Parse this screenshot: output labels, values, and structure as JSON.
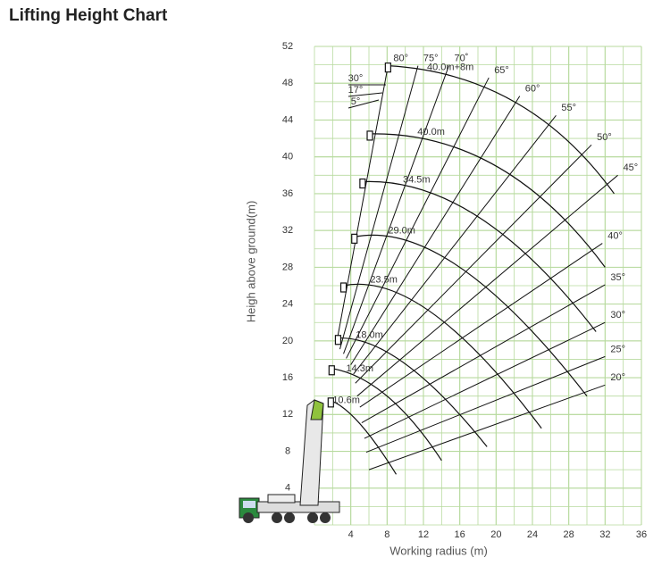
{
  "chart_data": {
    "type": "crane-range",
    "title": "Lifting Height Chart",
    "x_label": "Working radius (m)",
    "y_label": "Heigh above ground(m)",
    "xlim": [
      0,
      36
    ],
    "ylim": [
      0,
      52
    ],
    "xticks": [
      4,
      8,
      12,
      16,
      20,
      24,
      28,
      32,
      36
    ],
    "yticks": [
      4,
      8,
      12,
      16,
      20,
      24,
      28,
      32,
      36,
      40,
      44,
      48,
      52
    ],
    "grid": true,
    "minor_grid": true,
    "grid_color": "#b7da9e",
    "line_color": "#111",
    "booms": [
      {
        "name": "10.6m",
        "x": [
          1.8,
          5,
          9
        ],
        "y": [
          13.5,
          11,
          5.5
        ]
      },
      {
        "name": "14.3m",
        "x": [
          1.9,
          8,
          14
        ],
        "y": [
          17,
          14,
          7
        ]
      },
      {
        "name": "18.0m",
        "x": [
          2.6,
          10,
          19
        ],
        "y": [
          20.3,
          17.5,
          8.5
        ]
      },
      {
        "name": "23.5m",
        "x": [
          3.2,
          13,
          25
        ],
        "y": [
          26,
          23,
          10.5
        ]
      },
      {
        "name": "29.0m",
        "x": [
          4.4,
          16,
          30
        ],
        "y": [
          31.3,
          28,
          14
        ]
      },
      {
        "name": "34.5m",
        "x": [
          5.3,
          18,
          31
        ],
        "y": [
          37.3,
          33.5,
          21
        ]
      },
      {
        "name": "40.0m",
        "x": [
          6.1,
          20,
          32
        ],
        "y": [
          42.5,
          39,
          28
        ]
      },
      {
        "name": "40.0m+8m",
        "x": [
          8.1,
          22,
          33
        ],
        "y": [
          49.9,
          46,
          36
        ]
      }
    ],
    "angles": [
      {
        "name": "20°",
        "x": [
          6,
          32
        ],
        "y": [
          6,
          15.2
        ]
      },
      {
        "name": "25°",
        "x": [
          5.7,
          32
        ],
        "y": [
          7.9,
          18.3
        ]
      },
      {
        "name": "30°",
        "x": [
          5.5,
          32
        ],
        "y": [
          9.4,
          22
        ]
      },
      {
        "name": "35°",
        "x": [
          5.2,
          32
        ],
        "y": [
          11.1,
          26.1
        ]
      },
      {
        "name": "40°",
        "x": [
          5,
          31.7
        ],
        "y": [
          12.8,
          30.6
        ]
      },
      {
        "name": "45°",
        "x": [
          4.7,
          33.4
        ],
        "y": [
          14,
          38
        ]
      },
      {
        "name": "50°",
        "x": [
          4.5,
          30.5
        ],
        "y": [
          15.4,
          41.3
        ]
      },
      {
        "name": "55°",
        "x": [
          4.3,
          26.6
        ],
        "y": [
          16.4,
          44.5
        ]
      },
      {
        "name": "60°",
        "x": [
          4,
          22.6
        ],
        "y": [
          17.4,
          46.6
        ]
      },
      {
        "name": "65°",
        "x": [
          3.5,
          19.2
        ],
        "y": [
          18.1,
          48.6
        ]
      },
      {
        "name": "70˚",
        "x": [
          3.2,
          14.8
        ],
        "y": [
          18.6,
          49.9
        ]
      },
      {
        "name": "75°",
        "x": [
          2.8,
          11.4
        ],
        "y": [
          19.1,
          49.9
        ]
      },
      {
        "name": "80°",
        "x": [
          2.4,
          8.1
        ],
        "y": [
          19.6,
          49.9
        ]
      }
    ],
    "jib_offsets": [
      "30°",
      "17°",
      "5°"
    ]
  }
}
